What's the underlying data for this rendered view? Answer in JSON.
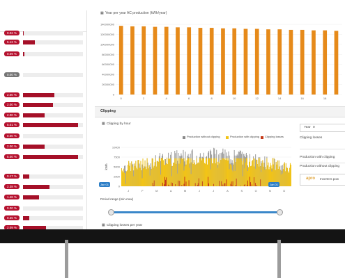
{
  "left_panel": {
    "rows": [
      {
        "pct": "0.02 %",
        "fill": 0.003,
        "neutral": false
      },
      {
        "pct": "5.13 %",
        "fill": 0.2,
        "neutral": false
      },
      {
        "pct": "0.09 %",
        "fill": 0.02,
        "neutral": false
      },
      {
        "pct": "0.00 %",
        "fill": 0,
        "neutral": true
      },
      {
        "pct": "2.00 %",
        "fill": 0.52,
        "neutral": false
      },
      {
        "pct": "2.00 %",
        "fill": 0.5,
        "neutral": false
      },
      {
        "pct": "2.00 %",
        "fill": 0.36,
        "neutral": false
      },
      {
        "pct": "5.01 %",
        "fill": 0.92,
        "neutral": false
      },
      {
        "pct": "0.00 %",
        "fill": 0,
        "neutral": false
      },
      {
        "pct": "2.00 %",
        "fill": 0.36,
        "neutral": false
      },
      {
        "pct": "5.00 %",
        "fill": 0.92,
        "neutral": false
      },
      {
        "pct": "0.17 %",
        "fill": 0.1,
        "neutral": false
      },
      {
        "pct": "2.38 %",
        "fill": 0.44,
        "neutral": false
      },
      {
        "pct": "1.48 %",
        "fill": 0.27,
        "neutral": false
      },
      {
        "pct": "0.00 %",
        "fill": 0,
        "neutral": false
      },
      {
        "pct": "0.35 %",
        "fill": 0.1,
        "neutral": false
      },
      {
        "pct": "2.09 %",
        "fill": 0.38,
        "neutral": false
      }
    ]
  },
  "production_chart": {
    "title": "Year per year AC production (kWh/year)",
    "chart_data": {
      "type": "bar",
      "ylim": [
        0,
        140000000
      ],
      "yticks": [
        "140000000",
        "120000000",
        "100000000",
        "80000000",
        "60000000",
        "40000000",
        "20000000",
        "0"
      ],
      "xticks": [
        "0",
        "2",
        "4",
        "6",
        "8",
        "10",
        "12",
        "14",
        "16",
        "18"
      ],
      "values": [
        137000000,
        136000000,
        136000000,
        135000000,
        135000000,
        134000000,
        134000000,
        133000000,
        133000000,
        132000000,
        132000000,
        131000000,
        131000000,
        130000000,
        130000000,
        129000000,
        129000000,
        128000000,
        128000000,
        127000000
      ],
      "color": "#e68a1a"
    }
  },
  "clipping": {
    "section_title": "Clipping",
    "chart_title": "Clipping by hour",
    "legend": [
      {
        "label": "Production without clipping",
        "color": "#8a8a8a"
      },
      {
        "label": "Production with clipping",
        "color": "#f2c417"
      },
      {
        "label": "Clipping losses",
        "color": "#c43a1a"
      }
    ],
    "y_label": "kWh",
    "yticks": [
      "10000",
      "7500",
      "5000",
      "2500",
      "0"
    ],
    "months": [
      "J",
      "F",
      "M",
      "A",
      "M",
      "J",
      "J",
      "A",
      "S",
      "O",
      "N",
      "D"
    ],
    "period_label": "Period range (min-max)",
    "range_start": "Jan 01",
    "range_end": "Jan 01",
    "year_label": "Year",
    "year_value": "0",
    "clipping_losses_label": "Clipping losses",
    "prod_with_label": "Production with clipping",
    "prod_without_label": "Production without clipping",
    "apps_brand": "apro",
    "inverters_label": "Inverters pow",
    "losses_per_year_label": "Clipping losses per year"
  }
}
